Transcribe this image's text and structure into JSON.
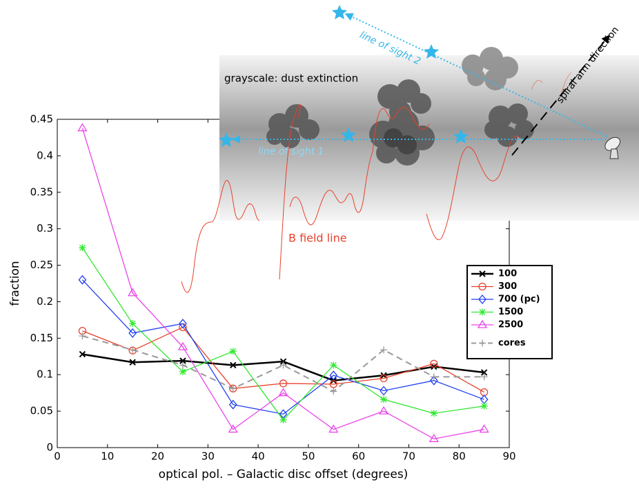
{
  "chart_data": {
    "type": "line",
    "x_label": "optical pol. – Galactic disc offset (degrees)",
    "y_label": "fraction",
    "x": [
      5,
      15,
      25,
      35,
      45,
      55,
      65,
      75,
      85
    ],
    "xlim": [
      0,
      90
    ],
    "xticks": [
      0,
      10,
      20,
      30,
      40,
      50,
      60,
      70,
      80,
      90
    ],
    "ylim": [
      0,
      0.45
    ],
    "yticks": [
      0,
      0.05,
      0.1,
      0.15,
      0.2,
      0.25,
      0.3,
      0.35,
      0.4,
      0.45
    ],
    "grid": false,
    "legend": "right",
    "series": [
      {
        "name": "100",
        "color": "#000000",
        "marker": "x",
        "dash": false,
        "width": 2.5,
        "values": [
          0.128,
          0.117,
          0.119,
          0.113,
          0.118,
          0.092,
          0.099,
          0.111,
          0.103
        ]
      },
      {
        "name": "300",
        "color": "#e8412c",
        "marker": "o",
        "dash": false,
        "width": 1.3,
        "values": [
          0.16,
          0.133,
          0.165,
          0.081,
          0.088,
          0.087,
          0.095,
          0.115,
          0.076
        ]
      },
      {
        "name": "700 (pc)",
        "color": "#1f3ff0",
        "marker": "d",
        "dash": false,
        "width": 1.3,
        "values": [
          0.23,
          0.157,
          0.17,
          0.059,
          0.046,
          0.099,
          0.078,
          0.092,
          0.066
        ]
      },
      {
        "name": "1500",
        "color": "#2ee82e",
        "marker": "*",
        "dash": false,
        "width": 1.3,
        "values": [
          0.274,
          0.17,
          0.104,
          0.132,
          0.038,
          0.113,
          0.066,
          0.047,
          0.057
        ]
      },
      {
        "name": "2500",
        "color": "#ea44ea",
        "marker": "^",
        "dash": false,
        "width": 1.3,
        "values": [
          0.438,
          0.212,
          0.138,
          0.025,
          0.075,
          0.025,
          0.05,
          0.012,
          0.025
        ]
      },
      {
        "name": "cores",
        "color": "#999999",
        "marker": "+",
        "dash": true,
        "width": 2,
        "values": [
          0.153,
          0.134,
          0.113,
          0.081,
          0.113,
          0.077,
          0.134,
          0.097,
          0.097
        ]
      }
    ],
    "annotations": {
      "grayscale": "grayscale: dust extinction",
      "line_of_sight_1": "line of sight 1",
      "line_of_sight_2": "line of sight 2",
      "spiral_arm": "spiral arm direction",
      "b_field": "B field line"
    }
  }
}
